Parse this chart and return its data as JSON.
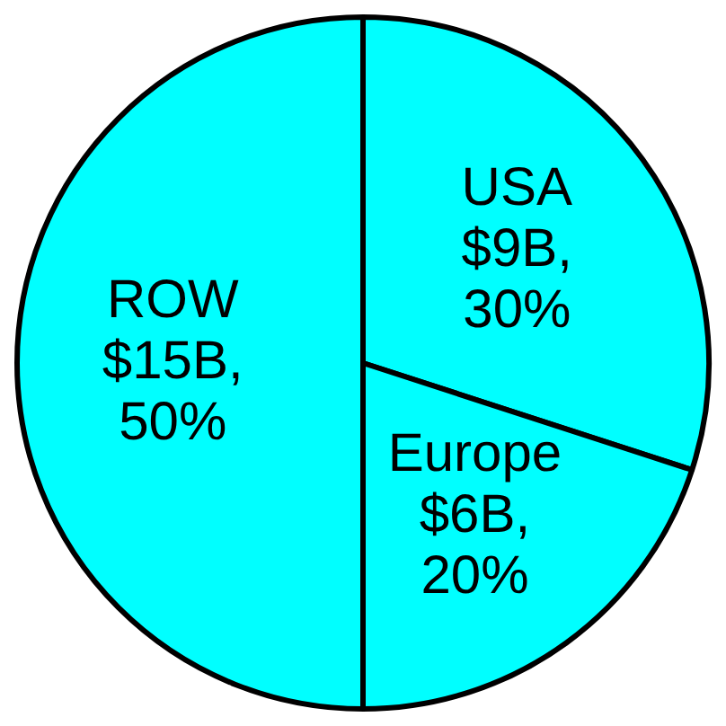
{
  "chart_data": {
    "type": "pie",
    "categories": [
      "USA",
      "Europe",
      "ROW"
    ],
    "values": [
      30,
      20,
      50
    ],
    "value_labels": [
      "$9B, 30%",
      "$6B, 20%",
      "$15B, 50%"
    ],
    "colors": [
      "#00ffff",
      "#00ffff",
      "#00ffff"
    ],
    "legend": false
  }
}
